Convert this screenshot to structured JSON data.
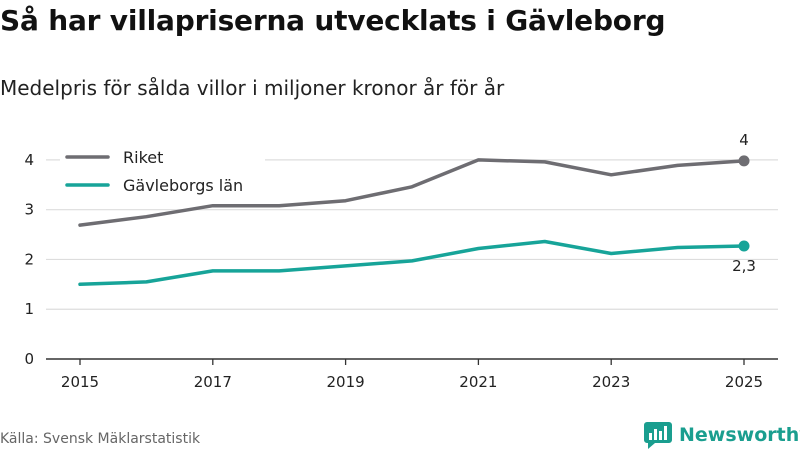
{
  "header": {
    "title": "Så har villapriserna utvecklats i Gävleborg",
    "subtitle": "Medelpris för sålda villor i miljoner kronor år för år"
  },
  "footer": {
    "source": "Källa: Svensk Mäklarstatistik",
    "brand": "Newsworthy",
    "brand_icon": "bar-chart-bubble-icon"
  },
  "colors": {
    "riket": "#6e6d72",
    "gavleborg": "#17a499",
    "brand": "#1a9e8f",
    "grid": "#dddddd"
  },
  "chart_data": {
    "type": "line",
    "title": "Så har villapriserna utvecklats i Gävleborg",
    "subtitle": "Medelpris för sålda villor i miljoner kronor år för år",
    "xlabel": "",
    "ylabel": "",
    "x": [
      2015,
      2016,
      2017,
      2018,
      2019,
      2020,
      2021,
      2022,
      2023,
      2024,
      2025
    ],
    "x_ticks": [
      "2015",
      "2017",
      "2019",
      "2021",
      "2023",
      "2025"
    ],
    "y_ticks": [
      "0",
      "1",
      "2",
      "3",
      "4"
    ],
    "ylim": [
      0,
      4.4
    ],
    "grid": true,
    "legend_position": "top-left",
    "series": [
      {
        "name": "Riket",
        "color": "#6e6d72",
        "values": [
          2.69,
          2.86,
          3.08,
          3.08,
          3.18,
          3.46,
          4.0,
          3.96,
          3.7,
          3.89,
          3.98
        ],
        "end_label": "4"
      },
      {
        "name": "Gävleborgs län",
        "color": "#17a499",
        "values": [
          1.5,
          1.55,
          1.77,
          1.77,
          1.87,
          1.97,
          2.22,
          2.36,
          2.12,
          2.24,
          2.27
        ],
        "end_label": "2,3"
      }
    ]
  }
}
